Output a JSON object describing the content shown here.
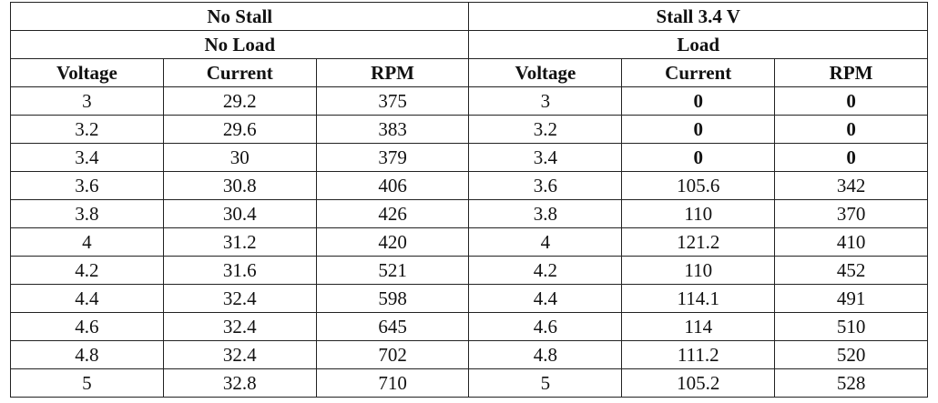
{
  "table": {
    "groups": [
      {
        "title": "No Stall",
        "subtitle": "No Load"
      },
      {
        "title": "Stall 3.4 V",
        "subtitle": "Load"
      }
    ],
    "columns": [
      "Voltage",
      "Current",
      "RPM",
      "Voltage",
      "Current",
      "RPM"
    ],
    "rows": [
      [
        "3",
        "29.2",
        "375",
        "3",
        "0",
        "0"
      ],
      [
        "3.2",
        "29.6",
        "383",
        "3.2",
        "0",
        "0"
      ],
      [
        "3.4",
        "30",
        "379",
        "3.4",
        "0",
        "0"
      ],
      [
        "3.6",
        "30.8",
        "406",
        "3.6",
        "105.6",
        "342"
      ],
      [
        "3.8",
        "30.4",
        "426",
        "3.8",
        "110",
        "370"
      ],
      [
        "4",
        "31.2",
        "420",
        "4",
        "121.2",
        "410"
      ],
      [
        "4.2",
        "31.6",
        "521",
        "4.2",
        "110",
        "452"
      ],
      [
        "4.4",
        "32.4",
        "598",
        "4.4",
        "114.1",
        "491"
      ],
      [
        "4.6",
        "32.4",
        "645",
        "4.6",
        "114",
        "510"
      ],
      [
        "4.8",
        "32.4",
        "702",
        "4.8",
        "111.2",
        "520"
      ],
      [
        "5",
        "32.8",
        "710",
        "5",
        "105.2",
        "528"
      ]
    ]
  }
}
